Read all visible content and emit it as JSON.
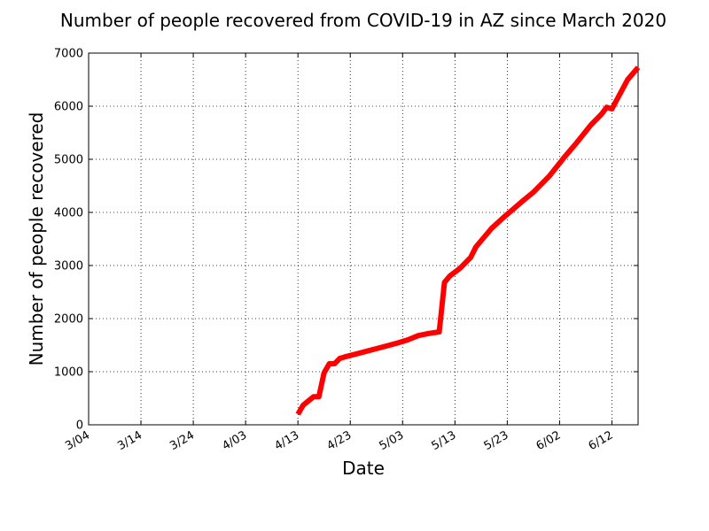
{
  "chart_data": {
    "type": "line",
    "title": "Number of people recovered from COVID-19 in AZ since March 2020",
    "xlabel": "Date",
    "ylabel": "Number of people recovered",
    "xlim": [
      "2020-03-04",
      "2020-06-17"
    ],
    "ylim": [
      0,
      7000
    ],
    "x_ticks": [
      "3/04",
      "3/14",
      "3/24",
      "4/03",
      "4/13",
      "4/23",
      "5/03",
      "5/13",
      "5/23",
      "6/02",
      "6/12"
    ],
    "x_tick_dates": [
      "2020-03-04",
      "2020-03-14",
      "2020-03-24",
      "2020-04-03",
      "2020-04-13",
      "2020-04-23",
      "2020-05-03",
      "2020-05-13",
      "2020-05-23",
      "2020-06-02",
      "2020-06-12"
    ],
    "y_ticks": [
      0,
      1000,
      2000,
      3000,
      4000,
      5000,
      6000,
      7000
    ],
    "grid": true,
    "line_color": "#ff0000",
    "series": [
      {
        "x": [
          "2020-04-13",
          "2020-04-14",
          "2020-04-15",
          "2020-04-16",
          "2020-04-17",
          "2020-04-18",
          "2020-04-19",
          "2020-04-20",
          "2020-04-21",
          "2020-04-22",
          "2020-04-24",
          "2020-04-29",
          "2020-05-02",
          "2020-05-04",
          "2020-05-06",
          "2020-05-08",
          "2020-05-10",
          "2020-05-11",
          "2020-05-12",
          "2020-05-14",
          "2020-05-15",
          "2020-05-16",
          "2020-05-17",
          "2020-05-20",
          "2020-05-22",
          "2020-05-24",
          "2020-05-26",
          "2020-05-28",
          "2020-05-31",
          "2020-06-03",
          "2020-06-05",
          "2020-06-08",
          "2020-06-10",
          "2020-06-11",
          "2020-06-12",
          "2020-06-15",
          "2020-06-17"
        ],
        "y": [
          200,
          370,
          450,
          530,
          530,
          980,
          1150,
          1150,
          1250,
          1280,
          1330,
          1460,
          1540,
          1600,
          1680,
          1720,
          1750,
          2680,
          2800,
          2950,
          3050,
          3150,
          3350,
          3700,
          3880,
          4050,
          4220,
          4380,
          4680,
          5050,
          5280,
          5650,
          5850,
          5980,
          5950,
          6500,
          6730
        ]
      }
    ]
  }
}
